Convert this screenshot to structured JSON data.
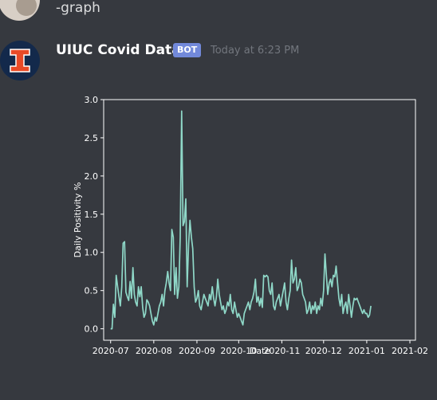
{
  "previous_message": {
    "text": "-graph"
  },
  "message": {
    "author": "UIUC Covid Data",
    "badge": "BOT",
    "timestamp": "Today at 6:23 PM",
    "avatar_icon": "illinois-block-i-icon"
  },
  "colors": {
    "background": "#36393f",
    "line": "#8fd8c8",
    "bot_badge": "#7289da",
    "illinois_orange": "#e84a27",
    "illinois_blue": "#13294b"
  },
  "chart_data": {
    "type": "line",
    "title": "",
    "xlabel": "Date",
    "ylabel": "Daily Positivity %",
    "ylim": [
      -0.15,
      3.0
    ],
    "xlim": [
      "2020-06-26",
      "2021-02-05"
    ],
    "yticks": [
      "0.0",
      "0.5",
      "1.0",
      "1.5",
      "2.0",
      "2.5",
      "3.0"
    ],
    "ytick_values": [
      0.0,
      0.5,
      1.0,
      1.5,
      2.0,
      2.5,
      3.0
    ],
    "xticks": [
      "2020-07",
      "2020-08",
      "2020-09",
      "2020-10",
      "2020-11",
      "2020-12",
      "2021-01",
      "2021-02"
    ],
    "xtick_dates": [
      "2020-07-01",
      "2020-08-01",
      "2020-09-01",
      "2020-10-01",
      "2020-11-01",
      "2020-12-01",
      "2021-01-01",
      "2021-02-01"
    ],
    "grid": false,
    "series": [
      {
        "start_date": "2020-07-01",
        "values": [
          0.0,
          0.0,
          0.32,
          0.15,
          0.7,
          0.55,
          0.42,
          0.3,
          0.55,
          1.12,
          1.14,
          0.48,
          0.42,
          0.37,
          0.62,
          0.4,
          0.8,
          0.45,
          0.35,
          0.3,
          0.55,
          0.42,
          0.55,
          0.28,
          0.15,
          0.2,
          0.38,
          0.35,
          0.3,
          0.2,
          0.1,
          0.05,
          0.15,
          0.1,
          0.2,
          0.3,
          0.35,
          0.45,
          0.3,
          0.5,
          0.6,
          0.75,
          0.6,
          0.5,
          1.3,
          1.2,
          0.45,
          0.8,
          0.4,
          0.55,
          1.2,
          2.85,
          1.35,
          1.4,
          1.7,
          0.55,
          1.1,
          1.42,
          1.2,
          1.05,
          0.55,
          0.35,
          0.4,
          0.5,
          0.3,
          0.25,
          0.35,
          0.45,
          0.4,
          0.35,
          0.3,
          0.45,
          0.38,
          0.55,
          0.4,
          0.3,
          0.42,
          0.65,
          0.45,
          0.35,
          0.25,
          0.3,
          0.2,
          0.25,
          0.35,
          0.3,
          0.45,
          0.25,
          0.2,
          0.35,
          0.25,
          0.15,
          0.2,
          0.15,
          0.1,
          0.05,
          0.2,
          0.25,
          0.3,
          0.35,
          0.25,
          0.35,
          0.4,
          0.48,
          0.65,
          0.35,
          0.42,
          0.3,
          0.4,
          0.28,
          0.7,
          0.68,
          0.7,
          0.68,
          0.5,
          0.45,
          0.6,
          0.3,
          0.25,
          0.35,
          0.4,
          0.45,
          0.3,
          0.4,
          0.5,
          0.6,
          0.35,
          0.25,
          0.4,
          0.5,
          0.9,
          0.6,
          0.65,
          0.8,
          0.5,
          0.55,
          0.65,
          0.6,
          0.45,
          0.4,
          0.35,
          0.2,
          0.25,
          0.35,
          0.2,
          0.3,
          0.25,
          0.35,
          0.2,
          0.3,
          0.25,
          0.4,
          0.3,
          0.5,
          0.98,
          0.7,
          0.45,
          0.6,
          0.65,
          0.55,
          0.7,
          0.68,
          0.82,
          0.6,
          0.4,
          0.3,
          0.45,
          0.2,
          0.3,
          0.35,
          0.2,
          0.45,
          0.3,
          0.15,
          0.3,
          0.4,
          0.38,
          0.4,
          0.35,
          0.3,
          0.25,
          0.2,
          0.25,
          0.2,
          0.2,
          0.15,
          0.18,
          0.3
        ]
      }
    ]
  }
}
